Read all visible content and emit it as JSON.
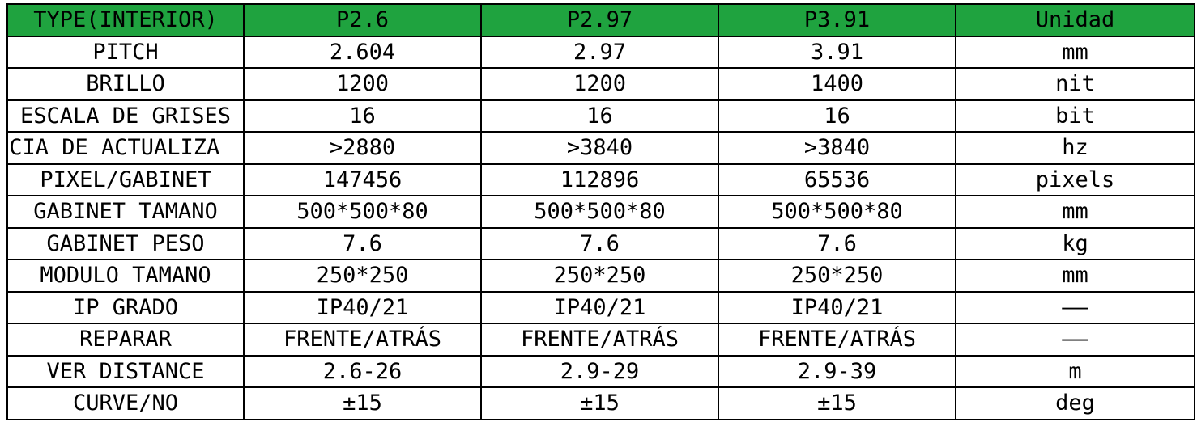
{
  "table": {
    "header_color": "#1fa33f",
    "headers": [
      "TYPE(INTERIOR)",
      "P2.6",
      "P2.97",
      "P3.91",
      "Unidad"
    ],
    "rows": [
      {
        "label": "PITCH",
        "values": [
          "2.604",
          "2.97",
          "3.91"
        ],
        "unit": "mm"
      },
      {
        "label": "BRILLO",
        "values": [
          "1200",
          "1200",
          "1400"
        ],
        "unit": "nit"
      },
      {
        "label": "ESCALA DE GRISES",
        "values": [
          "16",
          "16",
          "16"
        ],
        "unit": "bit"
      },
      {
        "label": "ENCIA DE ACTUALIZA",
        "values": [
          ">2880",
          ">3840",
          ">3840"
        ],
        "unit": "hz"
      },
      {
        "label": "PIXEL/GABINET",
        "values": [
          "147456",
          "112896",
          "65536"
        ],
        "unit": "pixels"
      },
      {
        "label": "GABINET TAMANO",
        "values": [
          "500*500*80",
          "500*500*80",
          "500*500*80"
        ],
        "unit": "mm"
      },
      {
        "label": "GABINET PESO",
        "values": [
          "7.6",
          "7.6",
          "7.6"
        ],
        "unit": "kg"
      },
      {
        "label": "MODULO TAMANO",
        "values": [
          "250*250",
          "250*250",
          "250*250"
        ],
        "unit": "mm"
      },
      {
        "label": "IP GRADO",
        "values": [
          "IP40/21",
          "IP40/21",
          "IP40/21"
        ],
        "unit": "——"
      },
      {
        "label": "REPARAR",
        "values": [
          "FRENTE/ATRÁS",
          "FRENTE/ATRÁS",
          "FRENTE/ATRÁS"
        ],
        "unit": "——"
      },
      {
        "label": "VER DISTANCE",
        "values": [
          "2.6-26",
          "2.9-29",
          "2.9-39"
        ],
        "unit": "m"
      },
      {
        "label": "CURVE/NO",
        "values": [
          "±15",
          "±15",
          "±15"
        ],
        "unit": "deg"
      }
    ]
  }
}
